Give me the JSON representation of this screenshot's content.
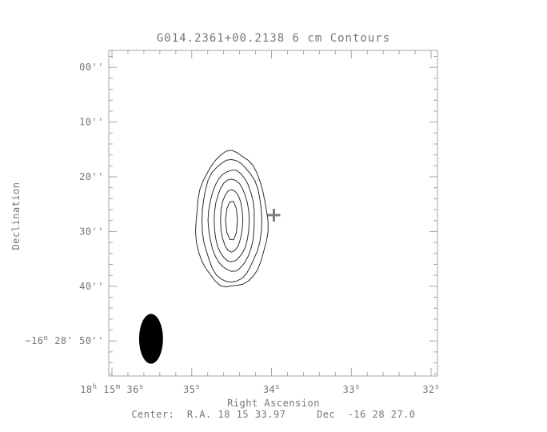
{
  "chart_data": {
    "type": "contour",
    "title": "G014.2361+00.2138 6 cm Contours",
    "xlabel": "Right Ascension",
    "ylabel": "Declination",
    "center_note": "Center:  R.A. 18 15 33.97     Dec  -16 28 27.0",
    "grid": false,
    "legend": null,
    "x_axis": {
      "unit": "seconds of RA within 18h 15m (increasing leftward)",
      "range": [
        36.04,
        31.92
      ],
      "minor_step": 0.2,
      "major_ticks": [
        {
          "value": 36,
          "label": "18^h 15^m 36^s"
        },
        {
          "value": 35,
          "label": "35^s"
        },
        {
          "value": 34,
          "label": "34^s"
        },
        {
          "value": 33,
          "label": "33^s"
        },
        {
          "value": 32,
          "label": "32^s"
        }
      ]
    },
    "y_axis": {
      "unit": "arcseconds below -16d 28m (increasing downward)",
      "range": [
        -3.1,
        56.4
      ],
      "minor_step": 2,
      "major_ticks": [
        {
          "value": 0,
          "label": "00''"
        },
        {
          "value": 10,
          "label": "10''"
        },
        {
          "value": 20,
          "label": "20''"
        },
        {
          "value": 30,
          "label": "30''"
        },
        {
          "value": 40,
          "label": "40''"
        },
        {
          "value": 50,
          "label": "−16^o 28' 50''"
        }
      ]
    },
    "contours": {
      "center": {
        "ra_s": 34.5,
        "dec_arcsec": 28.0
      },
      "levels": [
        {
          "semi_ra_s": 0.45,
          "semi_dec_arcsec": 12.4
        },
        {
          "semi_ra_s": 0.375,
          "semi_dec_arcsec": 11.2
        },
        {
          "semi_ra_s": 0.29,
          "semi_dec_arcsec": 9.25
        },
        {
          "semi_ra_s": 0.22,
          "semi_dec_arcsec": 7.55
        },
        {
          "semi_ra_s": 0.14,
          "semi_dec_arcsec": 5.7
        },
        {
          "semi_ra_s": 0.075,
          "semi_dec_arcsec": 3.65
        }
      ]
    },
    "marker_cross": {
      "ra_s": 33.97,
      "dec_arcsec": 27.0
    },
    "beam": {
      "ra_s": 35.51,
      "dec_arcsec": 49.6,
      "semi_ra_s": 0.15,
      "semi_dec_arcsec": 4.55
    },
    "colors": {
      "background": "#ffffff",
      "axis": "#a6a6a6",
      "text": "#767676",
      "contour": "#2f2f2f",
      "cross": "#7e7e7e",
      "beam": "#000000"
    }
  }
}
